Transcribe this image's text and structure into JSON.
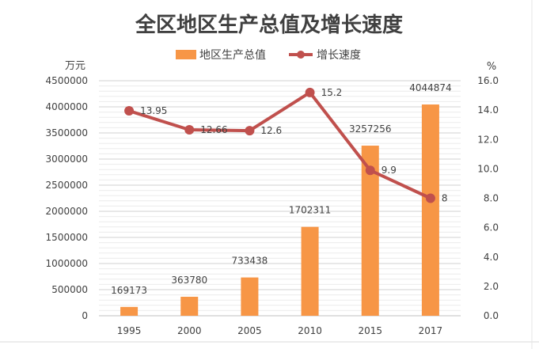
{
  "chart_data": {
    "type": "bar",
    "title": "全区地区生产总值及增长速度",
    "categories": [
      "1995",
      "2000",
      "2005",
      "2010",
      "2015",
      "2017"
    ],
    "series": [
      {
        "name": "地区生产总值",
        "type": "bar",
        "axis": "left",
        "color": "#F79646",
        "values": [
          169173,
          363780,
          733438,
          1702311,
          3257256,
          4044874
        ],
        "labels": [
          "169173",
          "363780",
          "733438",
          "1702311",
          "3257256",
          "4044874"
        ]
      },
      {
        "name": "增长速度",
        "type": "line",
        "axis": "right",
        "color": "#C0504D",
        "values": [
          13.95,
          12.66,
          12.6,
          15.2,
          9.9,
          8
        ],
        "labels": [
          "13.95",
          "12.66",
          "12.6",
          "15.2",
          "9.9",
          "8"
        ]
      }
    ],
    "y_left": {
      "unit": "万元",
      "ylim": [
        0,
        4500000
      ],
      "ticks": [
        "0",
        "500000",
        "1000000",
        "1500000",
        "2000000",
        "2500000",
        "3000000",
        "3500000",
        "4000000",
        "4500000"
      ]
    },
    "y_right": {
      "unit": "%",
      "ylim": [
        0,
        16
      ],
      "ticks": [
        "0.0",
        "2.0",
        "4.0",
        "6.0",
        "8.0",
        "10.0",
        "12.0",
        "14.0",
        "16.0"
      ]
    },
    "grid": true,
    "legend": "top-center"
  }
}
